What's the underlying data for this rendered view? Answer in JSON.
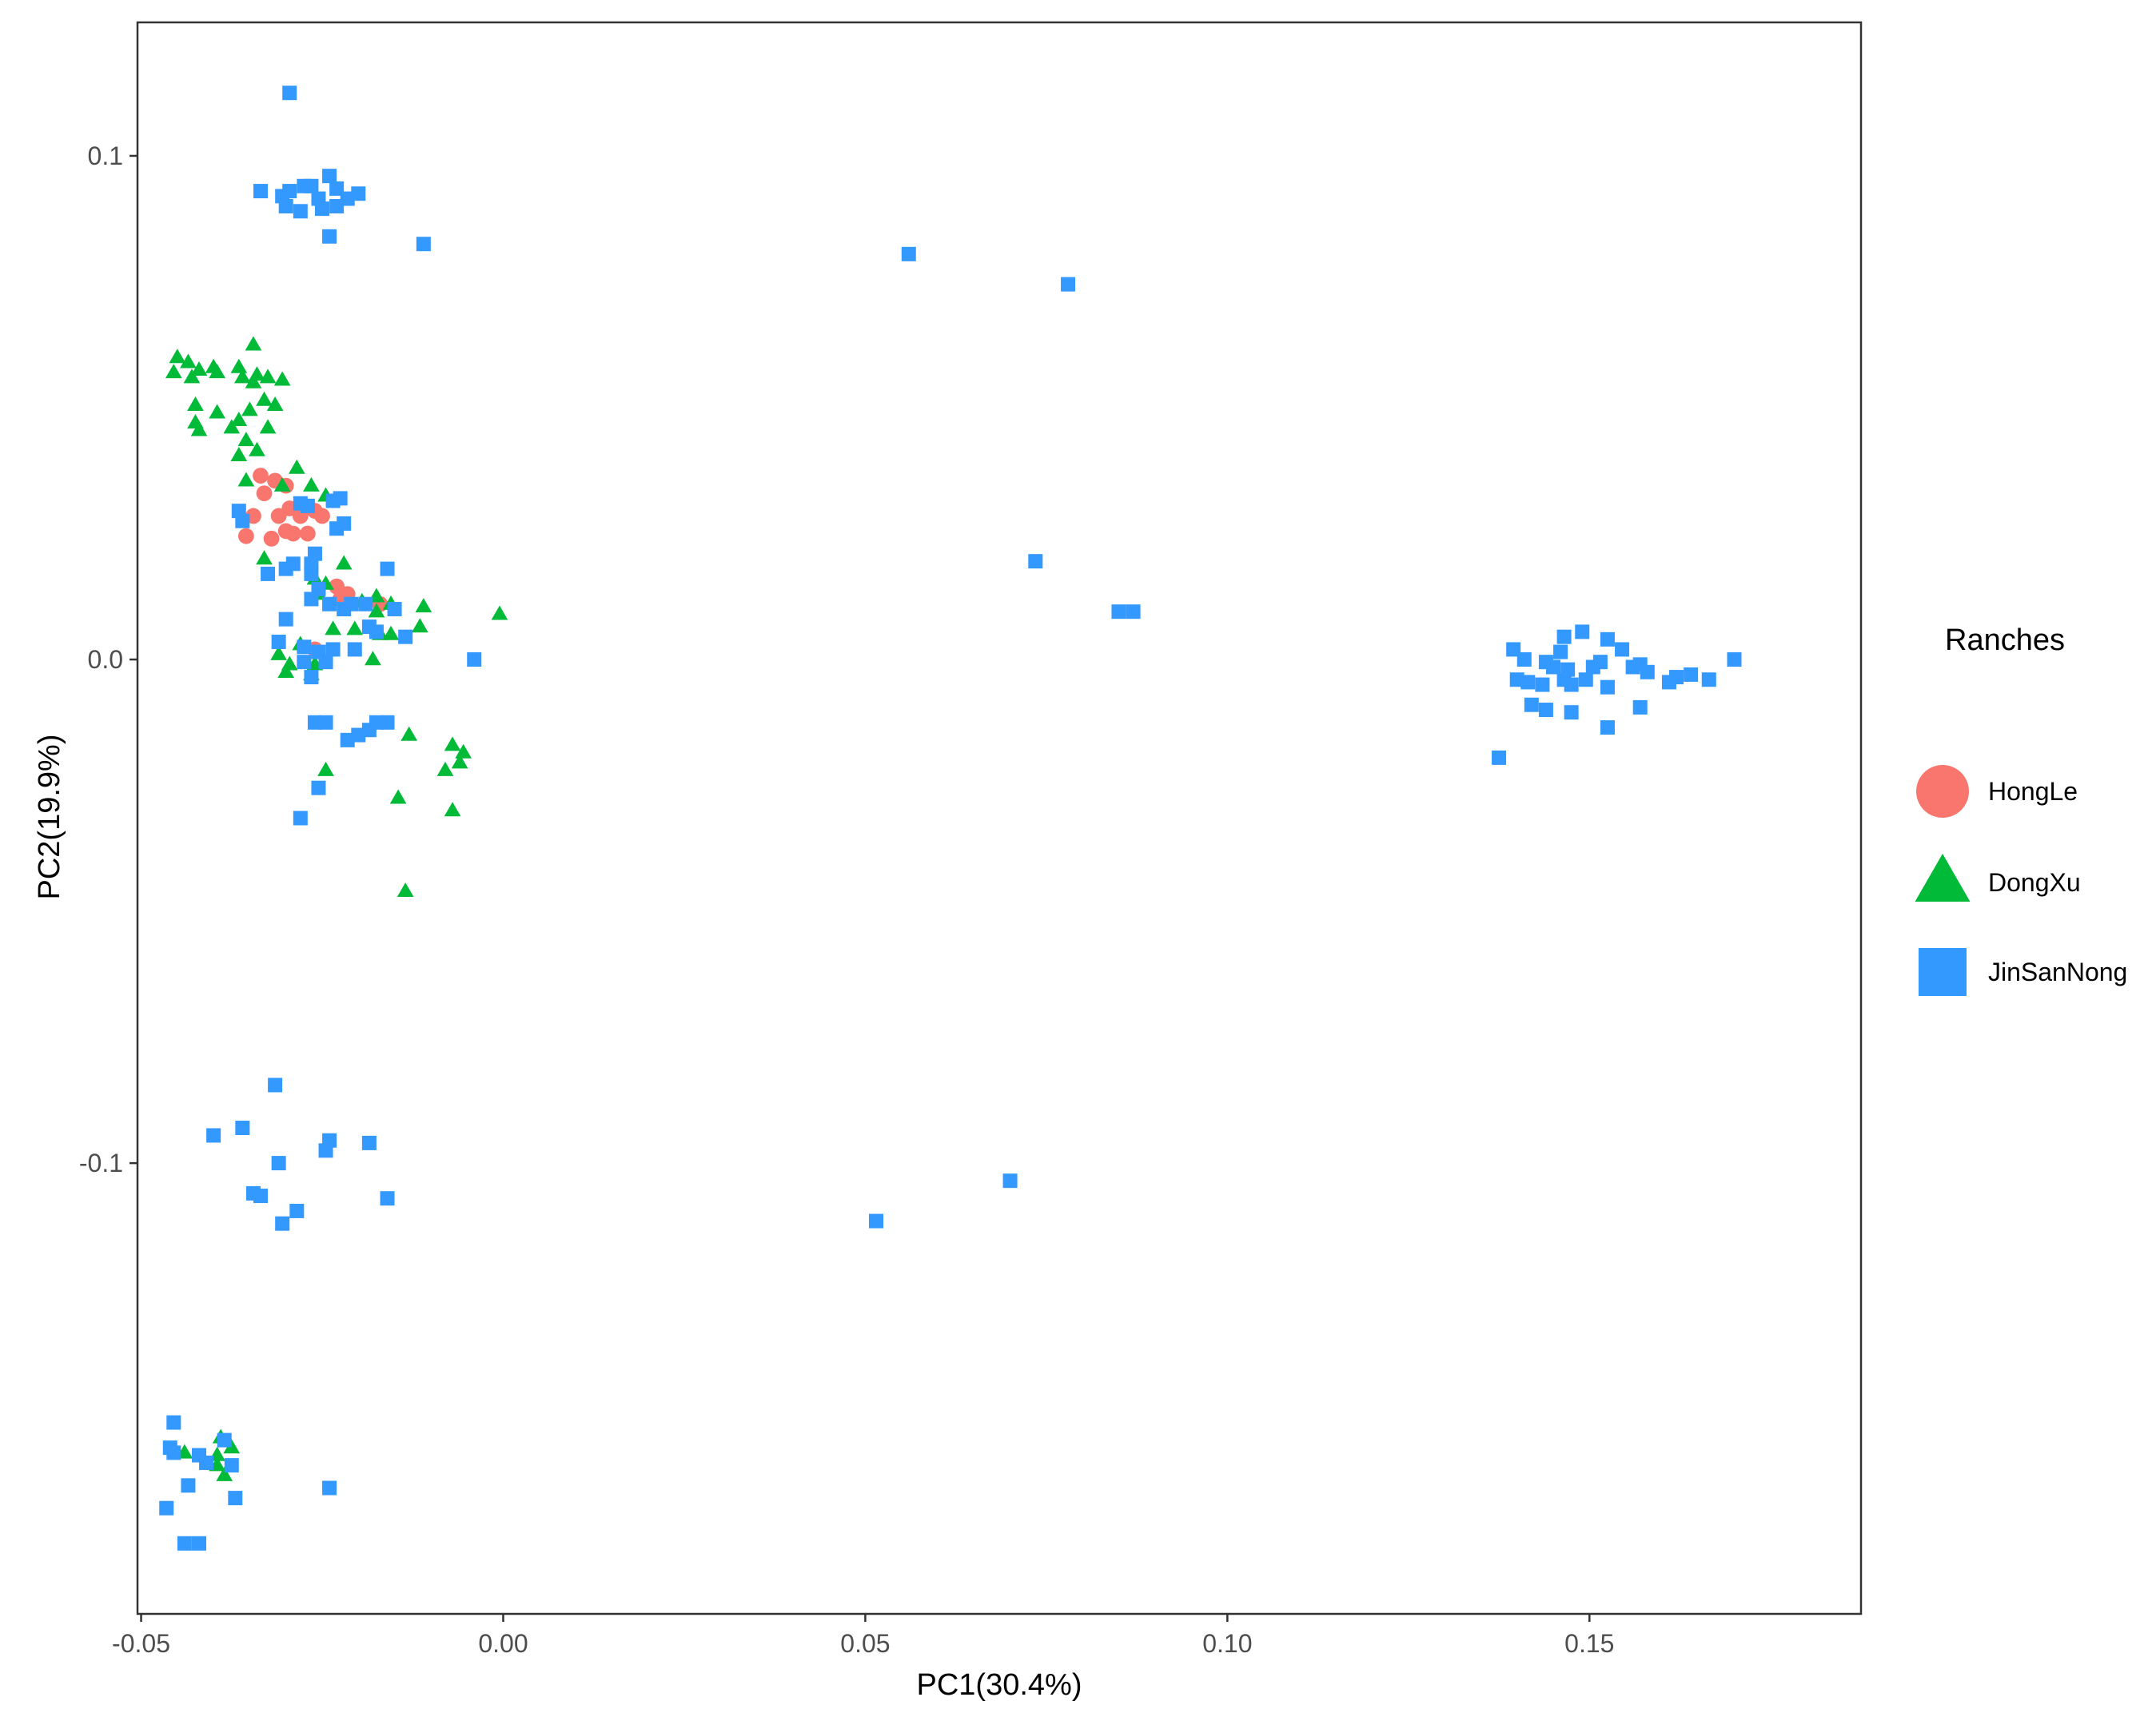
{
  "chart_data": {
    "type": "scatter",
    "title": "",
    "xlabel": "PC1(30.4%)",
    "ylabel": "PC2(19.9%)",
    "xlim": [
      -0.0505,
      0.1875
    ],
    "ylim": [
      -0.1895,
      0.1265
    ],
    "x_ticks": [
      -0.05,
      0.0,
      0.05,
      0.1,
      0.15
    ],
    "x_tick_labels": [
      "-0.05",
      "0.00",
      "0.05",
      "0.10",
      "0.15"
    ],
    "y_ticks": [
      0.1,
      0.0,
      -0.1
    ],
    "y_tick_labels": [
      "0.1",
      "0.0",
      "-0.1"
    ],
    "grid": false,
    "legend": {
      "title": "Ranches",
      "position": "right",
      "entries": [
        {
          "name": "HongLe",
          "shape": "circle",
          "color": "#F8766D"
        },
        {
          "name": "DongXu",
          "shape": "triangle",
          "color": "#00BA38"
        },
        {
          "name": "JinSanNong",
          "shape": "square",
          "color": "#3399FF"
        }
      ]
    },
    "series": [
      {
        "name": "HongLe",
        "shape": "circle",
        "color": "#F8766D",
        "points": [
          [
            -0.0335,
            0.0365
          ],
          [
            -0.0315,
            0.0355
          ],
          [
            -0.03,
            0.0345
          ],
          [
            -0.033,
            0.033
          ],
          [
            -0.0345,
            0.0285
          ],
          [
            -0.031,
            0.0285
          ],
          [
            -0.0295,
            0.03
          ],
          [
            -0.028,
            0.0285
          ],
          [
            -0.026,
            0.0295
          ],
          [
            -0.025,
            0.0285
          ],
          [
            -0.0355,
            0.0245
          ],
          [
            -0.032,
            0.024
          ],
          [
            -0.03,
            0.0255
          ],
          [
            -0.029,
            0.025
          ],
          [
            -0.027,
            0.025
          ],
          [
            -0.023,
            0.0145
          ],
          [
            -0.0215,
            0.013
          ],
          [
            -0.0225,
            0.012
          ],
          [
            -0.017,
            0.011
          ],
          [
            -0.026,
            0.002
          ]
        ]
      },
      {
        "name": "DongXu",
        "shape": "triangle",
        "color": "#00BA38",
        "points": [
          [
            -0.045,
            0.06
          ],
          [
            -0.0455,
            0.057
          ],
          [
            -0.0435,
            0.059
          ],
          [
            -0.042,
            0.0575
          ],
          [
            -0.043,
            0.056
          ],
          [
            -0.04,
            0.058
          ],
          [
            -0.0395,
            0.057
          ],
          [
            -0.0365,
            0.058
          ],
          [
            -0.036,
            0.056
          ],
          [
            -0.0345,
            0.055
          ],
          [
            -0.034,
            0.0565
          ],
          [
            -0.0325,
            0.056
          ],
          [
            -0.0305,
            0.0555
          ],
          [
            -0.0345,
            0.0625
          ],
          [
            -0.033,
            0.0515
          ],
          [
            -0.035,
            0.0495
          ],
          [
            -0.0365,
            0.0475
          ],
          [
            -0.0395,
            0.049
          ],
          [
            -0.0425,
            0.0505
          ],
          [
            -0.0425,
            0.047
          ],
          [
            -0.042,
            0.0455
          ],
          [
            -0.0375,
            0.046
          ],
          [
            -0.0355,
            0.0435
          ],
          [
            -0.0365,
            0.0405
          ],
          [
            -0.034,
            0.0415
          ],
          [
            -0.0325,
            0.046
          ],
          [
            -0.0315,
            0.0505
          ],
          [
            -0.0285,
            0.038
          ],
          [
            -0.0305,
            0.0345
          ],
          [
            -0.0355,
            0.0355
          ],
          [
            -0.0265,
            0.0345
          ],
          [
            -0.0245,
            0.0325
          ],
          [
            -0.033,
            0.02
          ],
          [
            -0.022,
            0.019
          ],
          [
            -0.026,
            0.016
          ],
          [
            -0.0245,
            0.015
          ],
          [
            -0.0255,
            0.013
          ],
          [
            -0.0195,
            0.0115
          ],
          [
            -0.0175,
            0.0125
          ],
          [
            -0.0175,
            0.0095
          ],
          [
            -0.0155,
            0.011
          ],
          [
            -0.011,
            0.0105
          ],
          [
            -0.0115,
            0.0065
          ],
          [
            -0.0005,
            0.009
          ],
          [
            -0.0235,
            0.006
          ],
          [
            -0.0205,
            0.006
          ],
          [
            -0.017,
            0.005
          ],
          [
            -0.0155,
            0.005
          ],
          [
            -0.028,
            0.003
          ],
          [
            -0.031,
            0.001
          ],
          [
            -0.0295,
            -0.001
          ],
          [
            -0.03,
            -0.0025
          ],
          [
            -0.0265,
            -0.003
          ],
          [
            -0.026,
            -0.001
          ],
          [
            -0.018,
            0.0
          ],
          [
            -0.013,
            -0.015
          ],
          [
            -0.007,
            -0.017
          ],
          [
            -0.0055,
            -0.0185
          ],
          [
            -0.006,
            -0.0205
          ],
          [
            -0.008,
            -0.022
          ],
          [
            -0.0245,
            -0.022
          ],
          [
            -0.0145,
            -0.0275
          ],
          [
            -0.007,
            -0.03
          ],
          [
            -0.0135,
            -0.046
          ],
          [
            -0.044,
            -0.1575
          ],
          [
            -0.039,
            -0.1545
          ],
          [
            -0.0375,
            -0.1565
          ],
          [
            -0.0395,
            -0.158
          ],
          [
            -0.0395,
            -0.16
          ],
          [
            -0.0385,
            -0.162
          ]
        ]
      },
      {
        "name": "JinSanNong",
        "shape": "square",
        "color": "#3399FF",
        "points": [
          [
            -0.0295,
            0.1125
          ],
          [
            -0.0335,
            0.093
          ],
          [
            -0.0305,
            0.092
          ],
          [
            -0.0295,
            0.093
          ],
          [
            -0.0275,
            0.094
          ],
          [
            -0.0265,
            0.094
          ],
          [
            -0.024,
            0.096
          ],
          [
            -0.023,
            0.0935
          ],
          [
            -0.0215,
            0.0915
          ],
          [
            -0.02,
            0.0925
          ],
          [
            -0.0255,
            0.0915
          ],
          [
            -0.025,
            0.0895
          ],
          [
            -0.023,
            0.09
          ],
          [
            -0.028,
            0.089
          ],
          [
            -0.03,
            0.09
          ],
          [
            -0.024,
            0.084
          ],
          [
            -0.011,
            0.0825
          ],
          [
            -0.0365,
            0.0295
          ],
          [
            -0.036,
            0.0275
          ],
          [
            -0.028,
            0.031
          ],
          [
            -0.027,
            0.0305
          ],
          [
            -0.0235,
            0.0315
          ],
          [
            -0.0225,
            0.032
          ],
          [
            -0.023,
            0.026
          ],
          [
            -0.022,
            0.027
          ],
          [
            -0.026,
            0.021
          ],
          [
            -0.029,
            0.019
          ],
          [
            -0.03,
            0.018
          ],
          [
            -0.0265,
            0.017
          ],
          [
            -0.0265,
            0.019
          ],
          [
            -0.016,
            0.018
          ],
          [
            -0.0325,
            0.017
          ],
          [
            -0.0255,
            0.014
          ],
          [
            -0.0265,
            0.012
          ],
          [
            -0.024,
            0.011
          ],
          [
            -0.022,
            0.01
          ],
          [
            -0.021,
            0.011
          ],
          [
            -0.019,
            0.011
          ],
          [
            -0.015,
            0.01
          ],
          [
            -0.03,
            0.008
          ],
          [
            -0.0185,
            0.0065
          ],
          [
            -0.0175,
            0.0055
          ],
          [
            -0.0135,
            0.0045
          ],
          [
            -0.031,
            0.0035
          ],
          [
            -0.0275,
            0.0025
          ],
          [
            -0.0255,
            0.0015
          ],
          [
            -0.0235,
            0.002
          ],
          [
            -0.0205,
            0.002
          ],
          [
            -0.0275,
            -0.0005
          ],
          [
            -0.0245,
            -0.0005
          ],
          [
            -0.0265,
            -0.0035
          ],
          [
            -0.004,
            0.0
          ],
          [
            -0.026,
            -0.0125
          ],
          [
            -0.0245,
            -0.0125
          ],
          [
            -0.0175,
            -0.0125
          ],
          [
            -0.016,
            -0.0125
          ],
          [
            -0.0185,
            -0.014
          ],
          [
            -0.02,
            -0.015
          ],
          [
            -0.0215,
            -0.016
          ],
          [
            -0.0255,
            -0.0255
          ],
          [
            -0.028,
            -0.0315
          ],
          [
            0.056,
            0.0805
          ],
          [
            0.078,
            0.0745
          ],
          [
            0.0735,
            0.0195
          ],
          [
            0.085,
            0.0095
          ],
          [
            0.087,
            0.0095
          ],
          [
            0.1375,
            -0.0195
          ],
          [
            0.1395,
            0.002
          ],
          [
            0.141,
            0.0
          ],
          [
            0.144,
            -0.0005
          ],
          [
            0.1465,
            0.0045
          ],
          [
            0.149,
            0.0055
          ],
          [
            0.1525,
            0.004
          ],
          [
            0.1545,
            0.002
          ],
          [
            0.157,
            -0.001
          ],
          [
            0.14,
            -0.004
          ],
          [
            0.1415,
            -0.0045
          ],
          [
            0.1435,
            -0.005
          ],
          [
            0.1465,
            -0.004
          ],
          [
            0.1475,
            -0.005
          ],
          [
            0.1495,
            -0.004
          ],
          [
            0.1525,
            -0.0055
          ],
          [
            0.156,
            -0.0015
          ],
          [
            0.158,
            -0.0025
          ],
          [
            0.161,
            -0.0045
          ],
          [
            0.164,
            -0.003
          ],
          [
            0.1665,
            -0.004
          ],
          [
            0.17,
            0.0
          ],
          [
            0.145,
            -0.0015
          ],
          [
            0.147,
            -0.002
          ],
          [
            0.1505,
            -0.0015
          ],
          [
            0.142,
            -0.009
          ],
          [
            0.144,
            -0.01
          ],
          [
            0.1475,
            -0.0105
          ],
          [
            0.1525,
            -0.0135
          ],
          [
            0.157,
            -0.0095
          ],
          [
            0.162,
            -0.0035
          ],
          [
            0.146,
            0.0015
          ],
          [
            0.1515,
            -0.0005
          ],
          [
            -0.0315,
            -0.0845
          ],
          [
            -0.04,
            -0.0945
          ],
          [
            -0.036,
            -0.093
          ],
          [
            -0.031,
            -0.1
          ],
          [
            -0.024,
            -0.0955
          ],
          [
            -0.0245,
            -0.0975
          ],
          [
            -0.0185,
            -0.096
          ],
          [
            -0.0345,
            -0.106
          ],
          [
            -0.0335,
            -0.1065
          ],
          [
            -0.0285,
            -0.1095
          ],
          [
            -0.0305,
            -0.112
          ],
          [
            -0.016,
            -0.107
          ],
          [
            0.07,
            -0.1035
          ],
          [
            0.0515,
            -0.1115
          ],
          [
            -0.0455,
            -0.1515
          ],
          [
            -0.046,
            -0.1565
          ],
          [
            -0.0455,
            -0.1575
          ],
          [
            -0.042,
            -0.158
          ],
          [
            -0.0385,
            -0.155
          ],
          [
            -0.041,
            -0.1595
          ],
          [
            -0.0375,
            -0.16
          ],
          [
            -0.0435,
            -0.164
          ],
          [
            -0.037,
            -0.1665
          ],
          [
            -0.0465,
            -0.1685
          ],
          [
            -0.044,
            -0.1755
          ],
          [
            -0.042,
            -0.1755
          ],
          [
            -0.024,
            -0.1645
          ]
        ]
      }
    ]
  }
}
